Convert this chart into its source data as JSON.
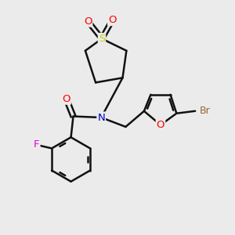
{
  "background_color": "#ebebeb",
  "atom_colors": {
    "C": "#000000",
    "N": "#0000cc",
    "O": "#ff0000",
    "S": "#cccc00",
    "F": "#ee00ee",
    "Br": "#996633",
    "default": "#000000"
  },
  "bond_color": "#111111",
  "bond_width": 1.8,
  "figsize": [
    3.0,
    3.0
  ],
  "dpi": 100
}
